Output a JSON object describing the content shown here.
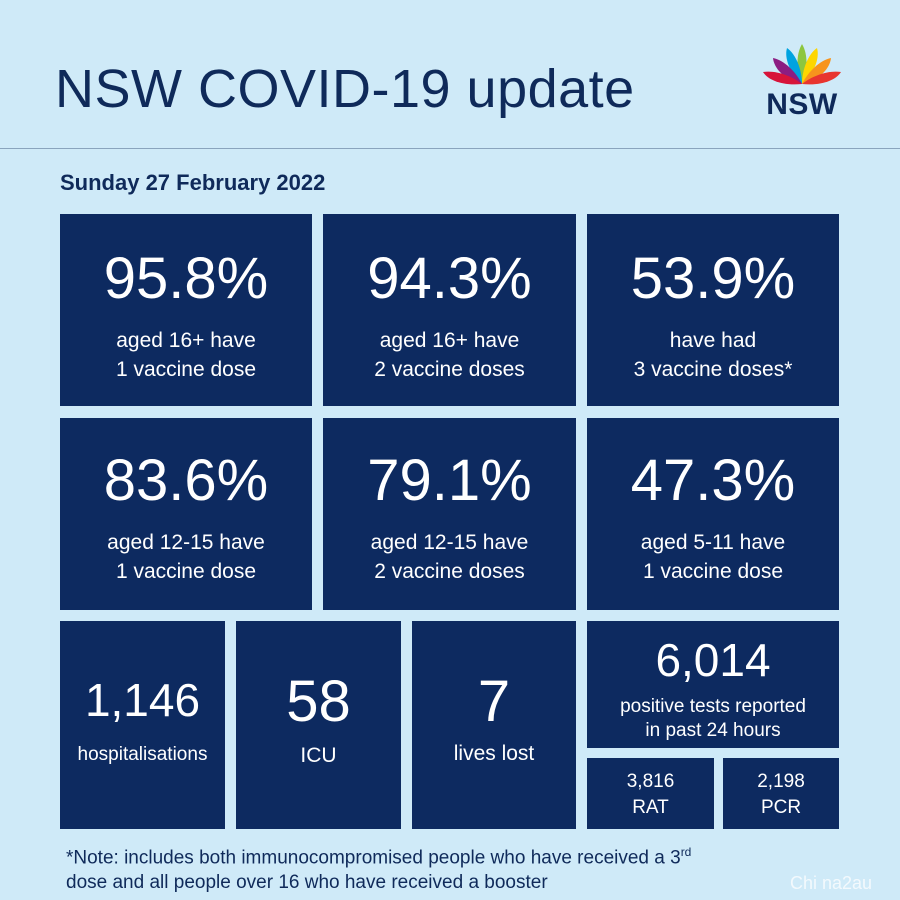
{
  "header": {
    "title": "NSW COVID-19 update",
    "logo_text": "NSW"
  },
  "date": "Sunday 27 February 2022",
  "vaccination_tiles": [
    {
      "value": "95.8%",
      "line1": "aged 16+ have",
      "line2": "1 vaccine dose"
    },
    {
      "value": "94.3%",
      "line1": "aged 16+ have",
      "line2": "2 vaccine doses"
    },
    {
      "value": "53.9%",
      "line1": "have had",
      "line2": "3 vaccine doses*"
    },
    {
      "value": "83.6%",
      "line1": "aged 12-15 have",
      "line2": "1 vaccine dose"
    },
    {
      "value": "79.1%",
      "line1": "aged 12-15 have",
      "line2": "2 vaccine doses"
    },
    {
      "value": "47.3%",
      "line1": "aged 5-11 have",
      "line2": "1 vaccine dose"
    }
  ],
  "stats": {
    "hospitalisations": {
      "value": "1,146",
      "label": "hospitalisations"
    },
    "icu": {
      "value": "58",
      "label": "ICU"
    },
    "lives_lost": {
      "value": "7",
      "label": "lives lost"
    },
    "positive_tests": {
      "value": "6,014",
      "line1": "positive tests reported",
      "line2": "in past 24 hours"
    },
    "rat": {
      "value": "3,816",
      "label": "RAT"
    },
    "pcr": {
      "value": "2,198",
      "label": "PCR"
    }
  },
  "note": {
    "part1": "*Note: includes both immunocompromised  people who have received a 3",
    "sup": "rd",
    "part2": "dose and all people over 16 who have received a booster"
  },
  "watermark": "Chi na2au",
  "colors": {
    "background": "#cfeaf8",
    "tile": "#0d2a60",
    "text_dark": "#0f2a5a"
  }
}
